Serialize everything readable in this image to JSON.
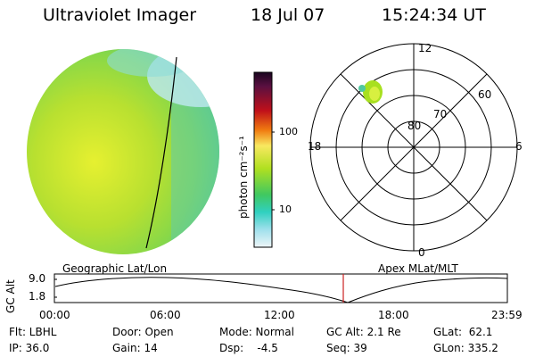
{
  "header": {
    "title": "Ultraviolet Imager",
    "date": "18 Jul 07",
    "time": "15:24:34 UT"
  },
  "colorbar": {
    "unit_label": "photon cm⁻²s⁻¹",
    "ticks": [
      "100",
      "10"
    ],
    "colors": [
      "#2a0a2a",
      "#5a1040",
      "#8c0a1a",
      "#c0101a",
      "#e04030",
      "#f07a10",
      "#f2c020",
      "#f8e860",
      "#d8f020",
      "#a0e020",
      "#60d040",
      "#30c870",
      "#30d0c0",
      "#60d8e8",
      "#b8e8f0",
      "#e8f4f8"
    ]
  },
  "polar": {
    "lat_labels": [
      "80",
      "70",
      "60"
    ],
    "mlt_labels": {
      "top": "12",
      "left": "18",
      "right": "6",
      "bottom": "0"
    }
  },
  "timeline": {
    "left_title": "Geographic Lat/Lon",
    "right_title": "Apex MLat/MLT",
    "y_axis_label": "GC Alt",
    "y_ticks": [
      "9.0",
      "1.8"
    ],
    "x_ticks": [
      "00:00",
      "06:00",
      "12:00",
      "18:00",
      "23:59"
    ],
    "marker_color": "#cc2222"
  },
  "info": {
    "flt": "Flt: LBHL",
    "ip": "IP: 36.0",
    "door": "Door: Open",
    "gain": "Gain: 14",
    "mode": "Mode: Normal",
    "dsp": "Dsp:    -4.5",
    "gc_alt": "GC Alt: 2.1 Re",
    "seq": "Seq: 39",
    "glat": "GLat:  62.1",
    "glon": "GLon: 335.2"
  }
}
